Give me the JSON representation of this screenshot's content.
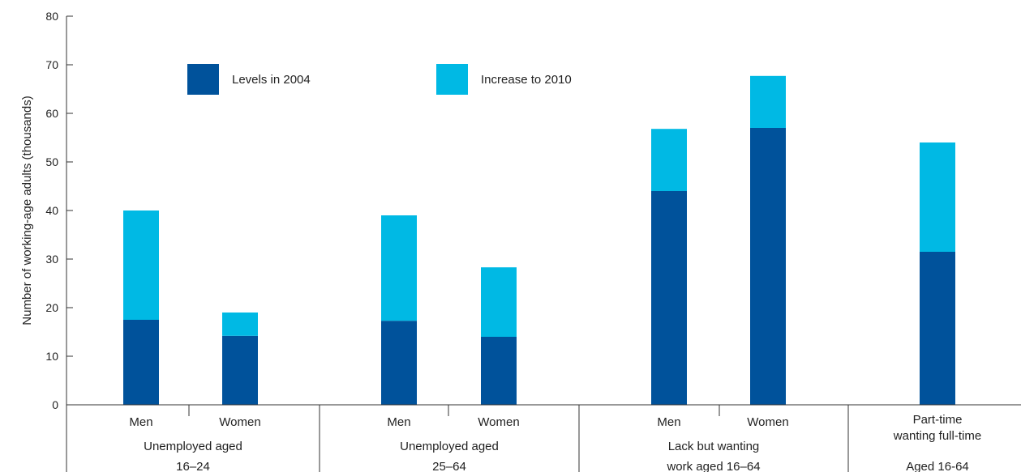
{
  "chart_data": {
    "type": "bar",
    "stacked": true,
    "ylabel": "Number of working-age adults (thousands)",
    "xlabel": "",
    "ylim": [
      0,
      80
    ],
    "yticks": [
      0,
      10,
      20,
      30,
      40,
      50,
      60,
      70,
      80
    ],
    "grid": false,
    "legend_placement": "top-left",
    "categories": [
      "Men",
      "Women",
      "Men",
      "Women",
      "Men",
      "Women",
      "Part-time wanting full-time"
    ],
    "groups": [
      {
        "label_lines": [
          "Unemployed aged",
          "16–24"
        ],
        "members": [
          0,
          1
        ]
      },
      {
        "label_lines": [
          "Unemployed aged",
          "25–64"
        ],
        "members": [
          2,
          3
        ]
      },
      {
        "label_lines": [
          "Lack but wanting",
          "work aged 16–64"
        ],
        "members": [
          4,
          5
        ]
      },
      {
        "label_lines": [
          "Aged 16-64"
        ],
        "members": [
          6
        ]
      }
    ],
    "category_label_lines": [
      [
        "Men"
      ],
      [
        "Women"
      ],
      [
        "Men"
      ],
      [
        "Women"
      ],
      [
        "Men"
      ],
      [
        "Women"
      ],
      [
        "Part-time",
        "wanting full-time"
      ]
    ],
    "series": [
      {
        "name": "Levels in 2004",
        "color": "#00529b",
        "values": [
          17.5,
          14.2,
          17.3,
          14.0,
          44.0,
          57.0,
          31.5
        ]
      },
      {
        "name": "Increase to 2010",
        "color": "#00b9e4",
        "values": [
          22.5,
          4.8,
          21.7,
          14.3,
          12.8,
          10.7,
          22.5
        ]
      }
    ]
  }
}
